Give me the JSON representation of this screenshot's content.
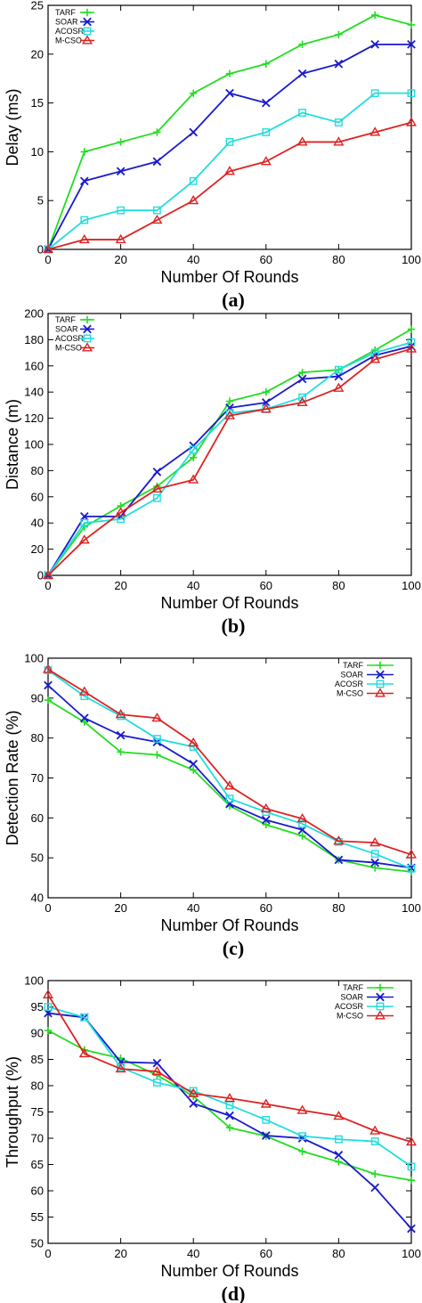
{
  "series_colors": {
    "TARF": "#22dd22",
    "SOAR": "#1a1acc",
    "ACOSR": "#22dddd",
    "M-CSO": "#dd2222"
  },
  "series_markers": {
    "TARF": "plus",
    "SOAR": "cross",
    "ACOSR": "square",
    "M-CSO": "triangle"
  },
  "chart_data": [
    {
      "type": "line",
      "label": "(a)",
      "xlabel": "Number Of Rounds",
      "ylabel": "Delay (ms)",
      "xlim": [
        0,
        100
      ],
      "ylim": [
        0,
        25
      ],
      "xticks": [
        0,
        20,
        40,
        60,
        80,
        100
      ],
      "yticks": [
        0,
        5,
        10,
        15,
        20,
        25
      ],
      "grid": false,
      "legend_position": "top-left",
      "x": [
        0,
        10,
        20,
        30,
        40,
        50,
        60,
        70,
        80,
        90,
        100
      ],
      "series": [
        {
          "name": "TARF",
          "values": [
            0,
            10,
            11,
            12,
            16,
            18,
            19,
            21,
            22,
            24,
            23
          ]
        },
        {
          "name": "SOAR",
          "values": [
            0,
            7,
            8,
            9,
            12,
            16,
            15,
            18,
            19,
            21,
            21
          ]
        },
        {
          "name": "ACOSR",
          "values": [
            0,
            3,
            4,
            4,
            7,
            11,
            12,
            14,
            13,
            16,
            16
          ]
        },
        {
          "name": "M-CSO",
          "values": [
            0,
            1,
            1,
            3,
            5,
            8,
            9,
            11,
            11,
            12,
            13
          ]
        }
      ]
    },
    {
      "type": "line",
      "label": "(b)",
      "xlabel": "Number Of Rounds",
      "ylabel": "Distance (m)",
      "xlim": [
        0,
        100
      ],
      "ylim": [
        0,
        200
      ],
      "xticks": [
        0,
        20,
        40,
        60,
        80,
        100
      ],
      "yticks": [
        0,
        20,
        40,
        60,
        80,
        100,
        120,
        140,
        160,
        180,
        200
      ],
      "grid": false,
      "legend_position": "top-left",
      "x": [
        0,
        10,
        20,
        30,
        40,
        50,
        60,
        70,
        80,
        90,
        100
      ],
      "series": [
        {
          "name": "TARF",
          "values": [
            0,
            37,
            53,
            68,
            90,
            133,
            140,
            155,
            157,
            172,
            188
          ]
        },
        {
          "name": "SOAR",
          "values": [
            0,
            45,
            45,
            79,
            99,
            128,
            132,
            150,
            152,
            168,
            175
          ]
        },
        {
          "name": "ACOSR",
          "values": [
            0,
            40,
            43,
            59,
            96,
            124,
            127,
            136,
            157,
            170,
            178
          ]
        },
        {
          "name": "M-CSO",
          "values": [
            0,
            27,
            48,
            66,
            73,
            122,
            127,
            132,
            143,
            165,
            173
          ]
        }
      ]
    },
    {
      "type": "line",
      "label": "(c)",
      "xlabel": "Number Of Rounds",
      "ylabel": "Detection Rate (%)",
      "xlim": [
        0,
        100
      ],
      "ylim": [
        40,
        100
      ],
      "xticks": [
        0,
        20,
        40,
        60,
        80,
        100
      ],
      "yticks": [
        40,
        50,
        60,
        70,
        80,
        90,
        100
      ],
      "grid": false,
      "legend_position": "top-right",
      "x": [
        0,
        10,
        20,
        30,
        40,
        50,
        60,
        70,
        80,
        90,
        100
      ],
      "series": [
        {
          "name": "TARF",
          "values": [
            89.5,
            84,
            76.5,
            75.8,
            72,
            63,
            58.3,
            55.5,
            49.5,
            47.5,
            46.5
          ]
        },
        {
          "name": "SOAR",
          "values": [
            93.2,
            85,
            80.7,
            79,
            73.5,
            63.5,
            59.5,
            57,
            49.5,
            48.8,
            47.5
          ]
        },
        {
          "name": "ACOSR",
          "values": [
            97,
            90.5,
            85.5,
            79.8,
            77.8,
            64.8,
            61.5,
            58.5,
            54,
            51,
            47.3
          ]
        },
        {
          "name": "M-CSO",
          "values": [
            97.2,
            91.6,
            85.9,
            85,
            78.8,
            68,
            62.3,
            59.8,
            54.2,
            53.8,
            50.8
          ]
        }
      ]
    },
    {
      "type": "line",
      "label": "(d)",
      "xlabel": "Number Of Rounds",
      "ylabel": "Throughput (%)",
      "xlim": [
        0,
        100
      ],
      "ylim": [
        50,
        100
      ],
      "xticks": [
        0,
        20,
        40,
        60,
        80,
        100
      ],
      "yticks": [
        50,
        55,
        60,
        65,
        70,
        75,
        80,
        85,
        90,
        95,
        100
      ],
      "grid": false,
      "legend_position": "top-right",
      "x": [
        0,
        10,
        20,
        30,
        40,
        50,
        60,
        70,
        80,
        90,
        100
      ],
      "series": [
        {
          "name": "TARF",
          "values": [
            90.5,
            86.8,
            85.2,
            82,
            78,
            72,
            70.4,
            67.5,
            65.5,
            63.2,
            62
          ]
        },
        {
          "name": "SOAR",
          "values": [
            93.8,
            93,
            84.5,
            84.3,
            76.6,
            74.3,
            70.5,
            70,
            66.8,
            60.6,
            52.8
          ]
        },
        {
          "name": "ACOSR",
          "values": [
            95,
            93,
            83.5,
            80.6,
            79,
            76.3,
            73.5,
            70.4,
            69.8,
            69.4,
            64.6
          ]
        },
        {
          "name": "M-CSO",
          "values": [
            97.3,
            86.1,
            83.2,
            82.7,
            78.5,
            77.6,
            76.5,
            75.3,
            74.2,
            71.4,
            69.3
          ]
        }
      ]
    }
  ]
}
